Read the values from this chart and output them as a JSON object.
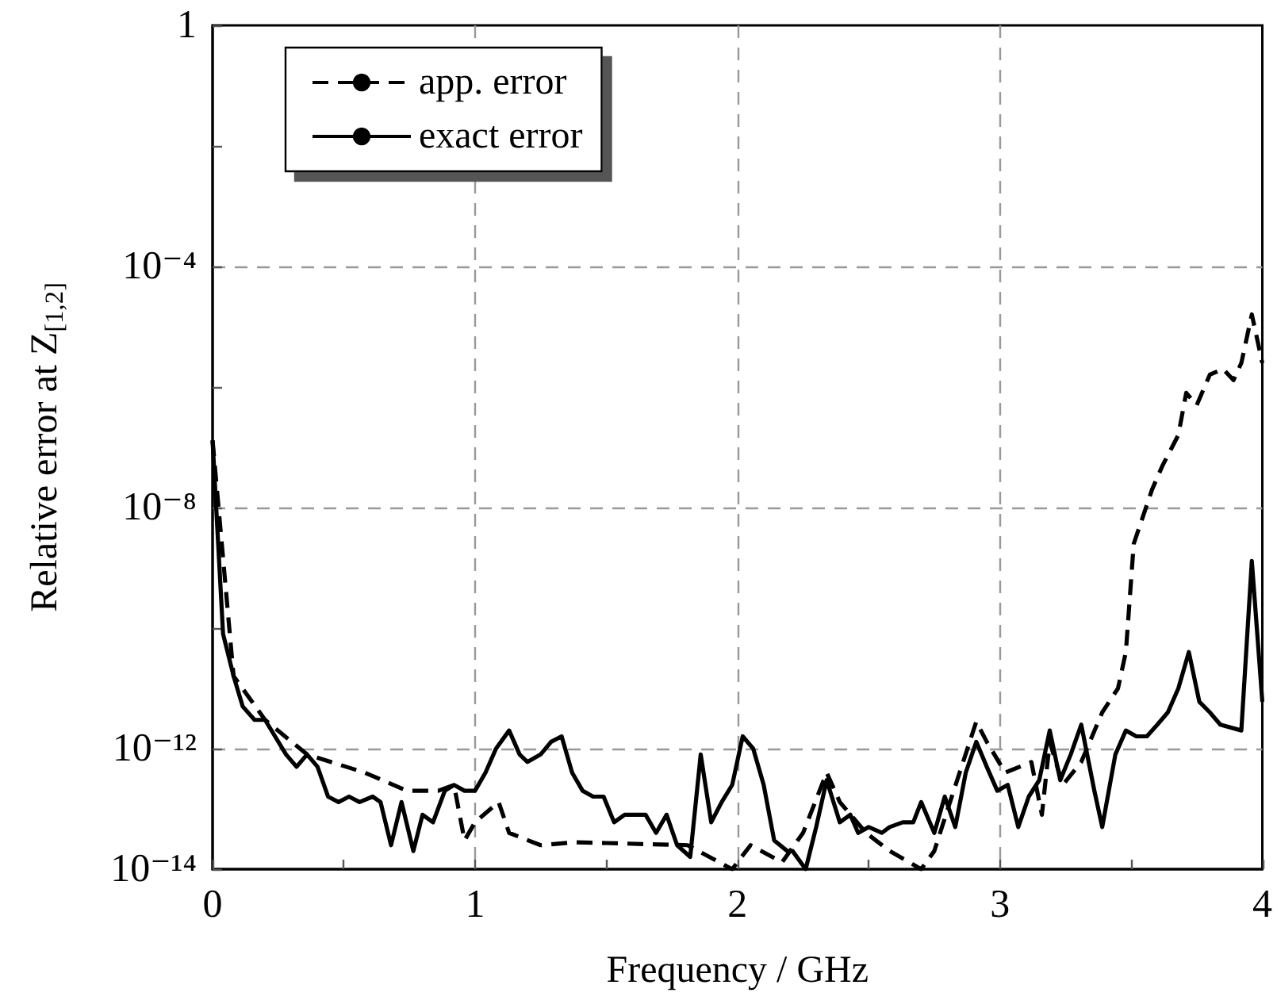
{
  "chart_data": {
    "type": "line",
    "xlabel": "Frequency / GHz",
    "ylabel": "Relative error at Z$_{[1,2]}$",
    "xlim": [
      0,
      4
    ],
    "xticks": [
      0,
      {
        "value": 0.5,
        "label": null
      },
      1,
      {
        "value": 1.5,
        "label": null
      },
      2,
      {
        "value": 2.5,
        "label": null
      },
      3,
      {
        "value": 3.5,
        "label": null
      },
      4
    ],
    "ylim": [
      1e-14,
      1
    ],
    "yticks": [
      {
        "value": 1e-14,
        "label": "10⁻¹⁴"
      },
      {
        "value": 1e-12,
        "label": "10⁻¹²"
      },
      {
        "value": 1e-10,
        "label": null
      },
      {
        "value": 1e-08,
        "label": "10⁻⁸"
      },
      {
        "value": 1e-06,
        "label": null
      },
      {
        "value": 0.0001,
        "label": "10⁻⁴"
      },
      {
        "value": 0.01,
        "label": null
      },
      1
    ],
    "log": "y",
    "grid": true,
    "legend": "top left",
    "marker": "none",
    "series": [
      {
        "name": "app. error",
        "color": "#000000",
        "line_style": "dashed",
        "x": [
          0,
          0.08,
          0.2,
          0.36,
          0.58,
          0.74,
          0.86,
          0.92,
          0.96,
          1.0,
          1.09,
          1.13,
          1.25,
          1.38,
          1.81,
          1.98,
          2.05,
          2.17,
          2.25,
          2.34,
          2.39,
          2.49,
          2.58,
          2.7,
          2.75,
          2.81,
          2.91,
          2.95,
          3.02,
          3.12,
          3.16,
          3.19,
          3.24,
          3.31,
          3.39,
          3.45,
          3.48,
          3.51,
          3.58,
          3.62,
          3.68,
          3.71,
          3.75,
          3.8,
          3.85,
          3.89,
          3.92,
          3.96,
          4.0
        ],
        "values": [
          1.3e-07,
          1.6e-11,
          3e-12,
          8e-13,
          4e-13,
          2e-13,
          2e-13,
          2.5e-13,
          3e-14,
          6e-14,
          1.3e-13,
          4e-14,
          2.5e-14,
          2.8e-14,
          2.5e-14,
          1e-14,
          2.5e-14,
          1.3e-14,
          4e-14,
          4e-13,
          1.3e-13,
          4e-14,
          2e-14,
          1e-14,
          2e-14,
          1.3e-13,
          2.8e-12,
          1.3e-12,
          4e-13,
          6e-13,
          8e-14,
          1.3e-12,
          2.5e-13,
          6e-13,
          4e-12,
          1e-11,
          4e-11,
          2.5e-09,
          2e-08,
          5e-08,
          1.6e-07,
          8e-07,
          5e-07,
          1.6e-06,
          2e-06,
          1.3e-06,
          2.5e-06,
          1.6e-05,
          2.5e-06
        ]
      },
      {
        "name": "exact error",
        "color": "#000000",
        "line_style": "solid",
        "x": [
          0,
          0.04,
          0.08,
          0.115,
          0.16,
          0.2,
          0.28,
          0.32,
          0.36,
          0.4,
          0.44,
          0.48,
          0.52,
          0.56,
          0.61,
          0.64,
          0.68,
          0.72,
          0.765,
          0.8,
          0.84,
          0.885,
          0.92,
          0.96,
          1.0,
          1.04,
          1.08,
          1.13,
          1.17,
          1.2,
          1.25,
          1.29,
          1.33,
          1.37,
          1.41,
          1.45,
          1.49,
          1.53,
          1.57,
          1.61,
          1.65,
          1.69,
          1.73,
          1.77,
          1.82,
          1.86,
          1.9,
          1.94,
          1.98,
          2.02,
          2.06,
          2.1,
          2.14,
          2.19,
          2.21,
          2.26,
          2.3,
          2.34,
          2.39,
          2.43,
          2.46,
          2.5,
          2.55,
          2.58,
          2.63,
          2.67,
          2.7,
          2.75,
          2.79,
          2.83,
          2.87,
          2.91,
          2.95,
          2.99,
          3.03,
          3.07,
          3.11,
          3.15,
          3.19,
          3.23,
          3.27,
          3.31,
          3.36,
          3.39,
          3.44,
          3.48,
          3.52,
          3.56,
          3.6,
          3.64,
          3.68,
          3.72,
          3.76,
          3.8,
          3.84,
          3.92,
          3.96,
          4.0
        ],
        "values": [
          1.3e-07,
          8e-11,
          1.6e-11,
          5e-12,
          3e-12,
          3e-12,
          8e-13,
          5e-13,
          8e-13,
          5e-13,
          1.6e-13,
          1.3e-13,
          1.6e-13,
          1.3e-13,
          1.6e-13,
          1.3e-13,
          2.5e-14,
          1.3e-13,
          2e-14,
          8e-14,
          6e-14,
          2e-13,
          2.5e-13,
          2e-13,
          2e-13,
          4e-13,
          1e-12,
          2e-12,
          8e-13,
          6e-13,
          8e-13,
          1.3e-12,
          1.6e-12,
          4e-13,
          2e-13,
          1.6e-13,
          1.6e-13,
          6e-14,
          8e-14,
          8e-14,
          8e-14,
          4e-14,
          8e-14,
          2.5e-14,
          1.6e-14,
          8e-13,
          6e-14,
          1.3e-13,
          2.5e-13,
          1.6e-12,
          1e-12,
          2.5e-13,
          3e-14,
          2e-14,
          2e-14,
          1e-14,
          5e-14,
          3e-13,
          6e-14,
          8e-14,
          4e-14,
          5e-14,
          4e-14,
          5e-14,
          6e-14,
          6e-14,
          1.3e-13,
          4e-14,
          1.6e-13,
          5e-14,
          4e-13,
          1.3e-12,
          5e-13,
          2e-13,
          2.5e-13,
          5e-14,
          1.6e-13,
          3e-13,
          2e-12,
          3e-13,
          8e-13,
          2.5e-12,
          2e-13,
          5e-14,
          8e-13,
          2e-12,
          1.6e-12,
          1.6e-12,
          2.5e-12,
          4e-12,
          1e-11,
          4e-11,
          6e-12,
          4e-12,
          2.5e-12,
          2e-12,
          1.3e-09,
          6e-12
        ]
      }
    ]
  }
}
